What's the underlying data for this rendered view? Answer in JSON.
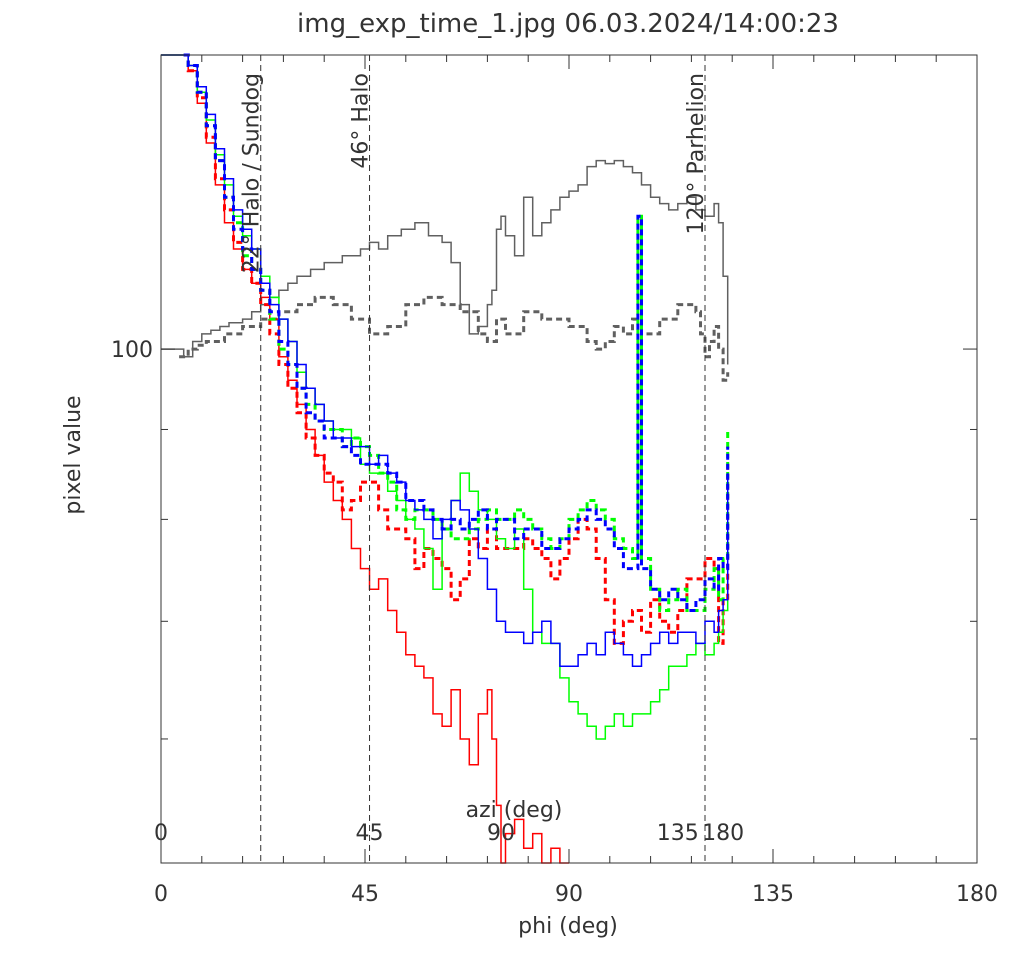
{
  "chart_data": {
    "type": "line",
    "title": "img_exp_time_1.jpg 06.03.2024/14:00:23",
    "xlabel": "phi (deg)",
    "ylabel": "pixel value",
    "xlim": [
      0,
      180
    ],
    "x_ticks": [
      "0",
      "45",
      "90",
      "135",
      "180"
    ],
    "ylim": [
      51,
      147
    ],
    "y_scale": "log",
    "y_ticks": [
      "100"
    ],
    "secondary_xlabel": "azi (deg)",
    "secondary_x_ticks": [
      {
        "label": "0",
        "phi": 0
      },
      {
        "label": "45",
        "phi": 46
      },
      {
        "label": "90",
        "phi": 75
      },
      {
        "label": "135",
        "phi": 114
      },
      {
        "label": "180",
        "phi": 124
      }
    ],
    "annotations": [
      {
        "label": "22° Halo / Sundog",
        "x": 22
      },
      {
        "label": "46° Halo",
        "x": 46
      },
      {
        "label": "120° Parhelion",
        "x": 120
      }
    ],
    "colors": {
      "red": "#ff0000",
      "green": "#00ff00",
      "blue": "#0000ff",
      "gray": "#606060",
      "axis": "#333333"
    },
    "series": [
      {
        "color": "#606060",
        "style": "solid",
        "x": [
          0,
          4,
          5,
          7,
          9,
          11,
          13,
          15,
          18,
          20,
          22,
          24,
          26,
          28,
          30,
          33,
          36,
          40,
          44,
          46,
          48,
          50,
          53,
          56,
          59,
          62,
          64,
          66,
          68,
          70,
          72,
          73,
          74,
          75,
          76,
          78,
          80,
          82,
          84,
          86,
          88,
          90,
          92,
          94,
          96,
          98,
          100,
          102,
          104,
          106,
          108,
          110,
          112,
          114,
          116,
          118,
          120,
          122,
          123,
          124,
          125
        ],
        "y": [
          100,
          100,
          99,
          101,
          102,
          102.5,
          103,
          103.5,
          104,
          105,
          106,
          107,
          108,
          109,
          110,
          111,
          112,
          113,
          114,
          115,
          114,
          116,
          117,
          118,
          116,
          115,
          112,
          106,
          102,
          103,
          106,
          108,
          117,
          119,
          116,
          113,
          122,
          116,
          118,
          120,
          122,
          123,
          124,
          127,
          128,
          127.5,
          128,
          127,
          126,
          124,
          122,
          121,
          120,
          121,
          122,
          120,
          119,
          121,
          118,
          110,
          98
        ]
      },
      {
        "color": "#606060",
        "style": "dashed",
        "x": [
          4,
          6,
          8,
          10,
          14,
          18,
          22,
          26,
          30,
          34,
          38,
          42,
          46,
          50,
          54,
          58,
          62,
          66,
          70,
          72,
          74,
          76,
          80,
          84,
          88,
          90,
          92,
          94,
          96,
          98,
          100,
          102,
          104,
          106,
          110,
          114,
          118,
          119,
          120,
          121,
          122,
          123,
          124,
          125
        ],
        "y": [
          99,
          100,
          100.5,
          101,
          102,
          103,
          104,
          105,
          106,
          107,
          106,
          104,
          102,
          103,
          106,
          107,
          106,
          105,
          102,
          101,
          104,
          102,
          105,
          104,
          104,
          103,
          103,
          101,
          100,
          101,
          103,
          102,
          104,
          102,
          104,
          106,
          105,
          102,
          99,
          101,
          103,
          100,
          96,
          97
        ]
      },
      {
        "color": "#ff0000",
        "style": "solid",
        "x": [
          0,
          5,
          6,
          8,
          10,
          12,
          14,
          16,
          18,
          20,
          22,
          24,
          26,
          28,
          30,
          32,
          34,
          36,
          38,
          40,
          42,
          44,
          46,
          48,
          50,
          52,
          54,
          56,
          58,
          60,
          62,
          64,
          66,
          68,
          70,
          72,
          73,
          74,
          75,
          76,
          78,
          80,
          82,
          84,
          86,
          88,
          90
        ],
        "y": [
          147,
          147,
          144,
          138,
          131,
          124,
          118,
          114,
          111,
          109,
          107,
          104,
          99,
          96,
          93,
          90,
          87,
          84,
          82,
          80,
          77,
          75,
          73,
          74,
          71,
          69,
          67,
          66,
          65,
          62,
          61,
          64,
          60,
          58,
          62,
          64,
          60,
          55,
          51,
          53,
          54,
          52,
          53,
          51,
          52,
          51,
          51
        ]
      },
      {
        "color": "#ff0000",
        "style": "dashed",
        "x": [
          5,
          6,
          8,
          10,
          12,
          14,
          16,
          18,
          20,
          22,
          24,
          26,
          28,
          30,
          32,
          34,
          36,
          38,
          40,
          42,
          44,
          46,
          48,
          50,
          52,
          54,
          56,
          58,
          60,
          62,
          64,
          66,
          68,
          70,
          72,
          74,
          76,
          78,
          80,
          82,
          84,
          86,
          88,
          90,
          92,
          94,
          96,
          98,
          100,
          102,
          104,
          106,
          108,
          110,
          112,
          114,
          116,
          118,
          120,
          122,
          123,
          124,
          125
        ],
        "y": [
          147,
          144,
          139,
          132,
          125,
          120,
          115,
          111,
          109,
          106,
          102,
          98,
          95,
          92,
          89,
          87,
          85,
          84,
          81,
          82,
          84,
          84,
          81,
          79,
          79,
          78,
          75,
          77,
          76,
          75,
          72,
          74,
          78,
          77,
          79,
          77,
          77,
          77,
          78,
          77,
          76,
          74,
          76,
          78,
          80,
          79,
          76,
          72,
          68,
          70,
          71,
          69,
          72,
          70,
          69,
          71,
          74,
          74,
          76,
          75,
          68,
          72,
          86
        ]
      },
      {
        "color": "#00ff00",
        "style": "solid",
        "x": [
          0,
          5,
          6,
          8,
          10,
          12,
          14,
          16,
          18,
          20,
          22,
          24,
          26,
          28,
          30,
          32,
          34,
          36,
          38,
          40,
          42,
          44,
          46,
          48,
          50,
          52,
          54,
          56,
          58,
          60,
          62,
          64,
          66,
          68,
          70,
          72,
          74,
          76,
          78,
          80,
          82,
          84,
          86,
          88,
          90,
          92,
          94,
          96,
          98,
          100,
          102,
          104,
          106,
          108,
          110,
          112,
          114,
          116,
          118,
          120,
          122,
          123,
          124,
          125
        ],
        "y": [
          147,
          147,
          145,
          140,
          135,
          129,
          124,
          119,
          116,
          114,
          110,
          107,
          104,
          101,
          97,
          95,
          93,
          91,
          90,
          90,
          89,
          86,
          85,
          85,
          83,
          82,
          80,
          79,
          77,
          73,
          79,
          82,
          85,
          83,
          81,
          80,
          78,
          77,
          79,
          73,
          69,
          68,
          68,
          65,
          63,
          62,
          61,
          60,
          61,
          62,
          61,
          62,
          62,
          63,
          64,
          66,
          66,
          67,
          68,
          67,
          68,
          69,
          71,
          74
        ]
      },
      {
        "color": "#00ff00",
        "style": "dashed",
        "x": [
          5,
          6,
          8,
          10,
          12,
          14,
          16,
          18,
          20,
          22,
          24,
          26,
          28,
          30,
          32,
          34,
          36,
          38,
          40,
          42,
          44,
          46,
          48,
          50,
          52,
          54,
          56,
          58,
          60,
          62,
          64,
          66,
          68,
          70,
          72,
          74,
          76,
          78,
          80,
          82,
          84,
          86,
          88,
          90,
          92,
          94,
          96,
          98,
          100,
          102,
          104,
          105,
          105.2,
          106,
          108,
          110,
          112,
          114,
          116,
          118,
          120,
          122,
          123,
          124,
          125
        ],
        "y": [
          147,
          145,
          140,
          134,
          128,
          122,
          118,
          113,
          111,
          108,
          104,
          100,
          98,
          95,
          93,
          91,
          90,
          90,
          88,
          89,
          88,
          87,
          85,
          84,
          81,
          80,
          81,
          81,
          80,
          79,
          78,
          78,
          79,
          80,
          81,
          80,
          80,
          81,
          80,
          79,
          78,
          77,
          78,
          80,
          81,
          82,
          81,
          80,
          78,
          77,
          76,
          76,
          119,
          76,
          73,
          71,
          72,
          73,
          71,
          71,
          73,
          75,
          72,
          76,
          90
        ]
      },
      {
        "color": "#0000ff",
        "style": "solid",
        "x": [
          0,
          5,
          6,
          8,
          10,
          12,
          14,
          16,
          18,
          20,
          22,
          24,
          26,
          28,
          30,
          32,
          34,
          36,
          38,
          40,
          42,
          44,
          46,
          48,
          50,
          52,
          54,
          56,
          58,
          60,
          62,
          64,
          66,
          68,
          70,
          72,
          74,
          76,
          78,
          80,
          82,
          84,
          86,
          88,
          90,
          92,
          94,
          96,
          98,
          100,
          102,
          104,
          106,
          108,
          110,
          112,
          114,
          116,
          118,
          120,
          122,
          123,
          124,
          125
        ],
        "y": [
          147,
          147,
          145,
          141,
          136,
          130,
          125,
          120,
          117,
          114,
          109,
          106,
          104,
          101,
          98,
          95,
          93,
          91,
          89,
          89,
          88,
          88,
          86,
          87,
          85,
          84,
          82,
          81,
          80,
          78,
          80,
          82,
          81,
          79,
          76,
          73,
          70,
          69,
          69,
          68,
          69,
          70,
          68,
          66,
          66,
          67,
          68,
          67,
          69,
          68,
          67,
          66,
          67,
          68,
          69,
          68,
          69,
          69,
          68,
          70,
          69,
          71,
          72,
          85
        ]
      },
      {
        "color": "#0000ff",
        "style": "dashed",
        "x": [
          5,
          6,
          8,
          10,
          12,
          14,
          16,
          18,
          20,
          22,
          24,
          26,
          28,
          30,
          32,
          34,
          36,
          38,
          40,
          42,
          44,
          46,
          48,
          50,
          52,
          54,
          56,
          58,
          60,
          62,
          64,
          66,
          68,
          70,
          72,
          74,
          76,
          78,
          80,
          82,
          84,
          86,
          88,
          90,
          92,
          94,
          96,
          98,
          100,
          102,
          104,
          105,
          105.2,
          106,
          108,
          110,
          112,
          114,
          116,
          118,
          120,
          122,
          123,
          124,
          125
        ],
        "y": [
          147,
          145,
          140,
          134,
          128,
          122,
          117,
          114,
          111,
          108,
          105,
          101,
          98,
          95,
          92,
          91,
          89,
          89,
          88,
          87,
          86,
          86,
          86,
          85,
          84,
          82,
          82,
          81,
          80,
          79,
          80,
          79,
          80,
          81,
          79,
          80,
          80,
          78,
          79,
          79,
          77,
          77,
          78,
          79,
          80,
          81,
          80,
          79,
          77,
          75,
          75,
          75,
          119,
          75,
          73,
          72,
          73,
          72,
          71,
          72,
          74,
          73,
          76,
          75,
          88
        ]
      }
    ]
  }
}
